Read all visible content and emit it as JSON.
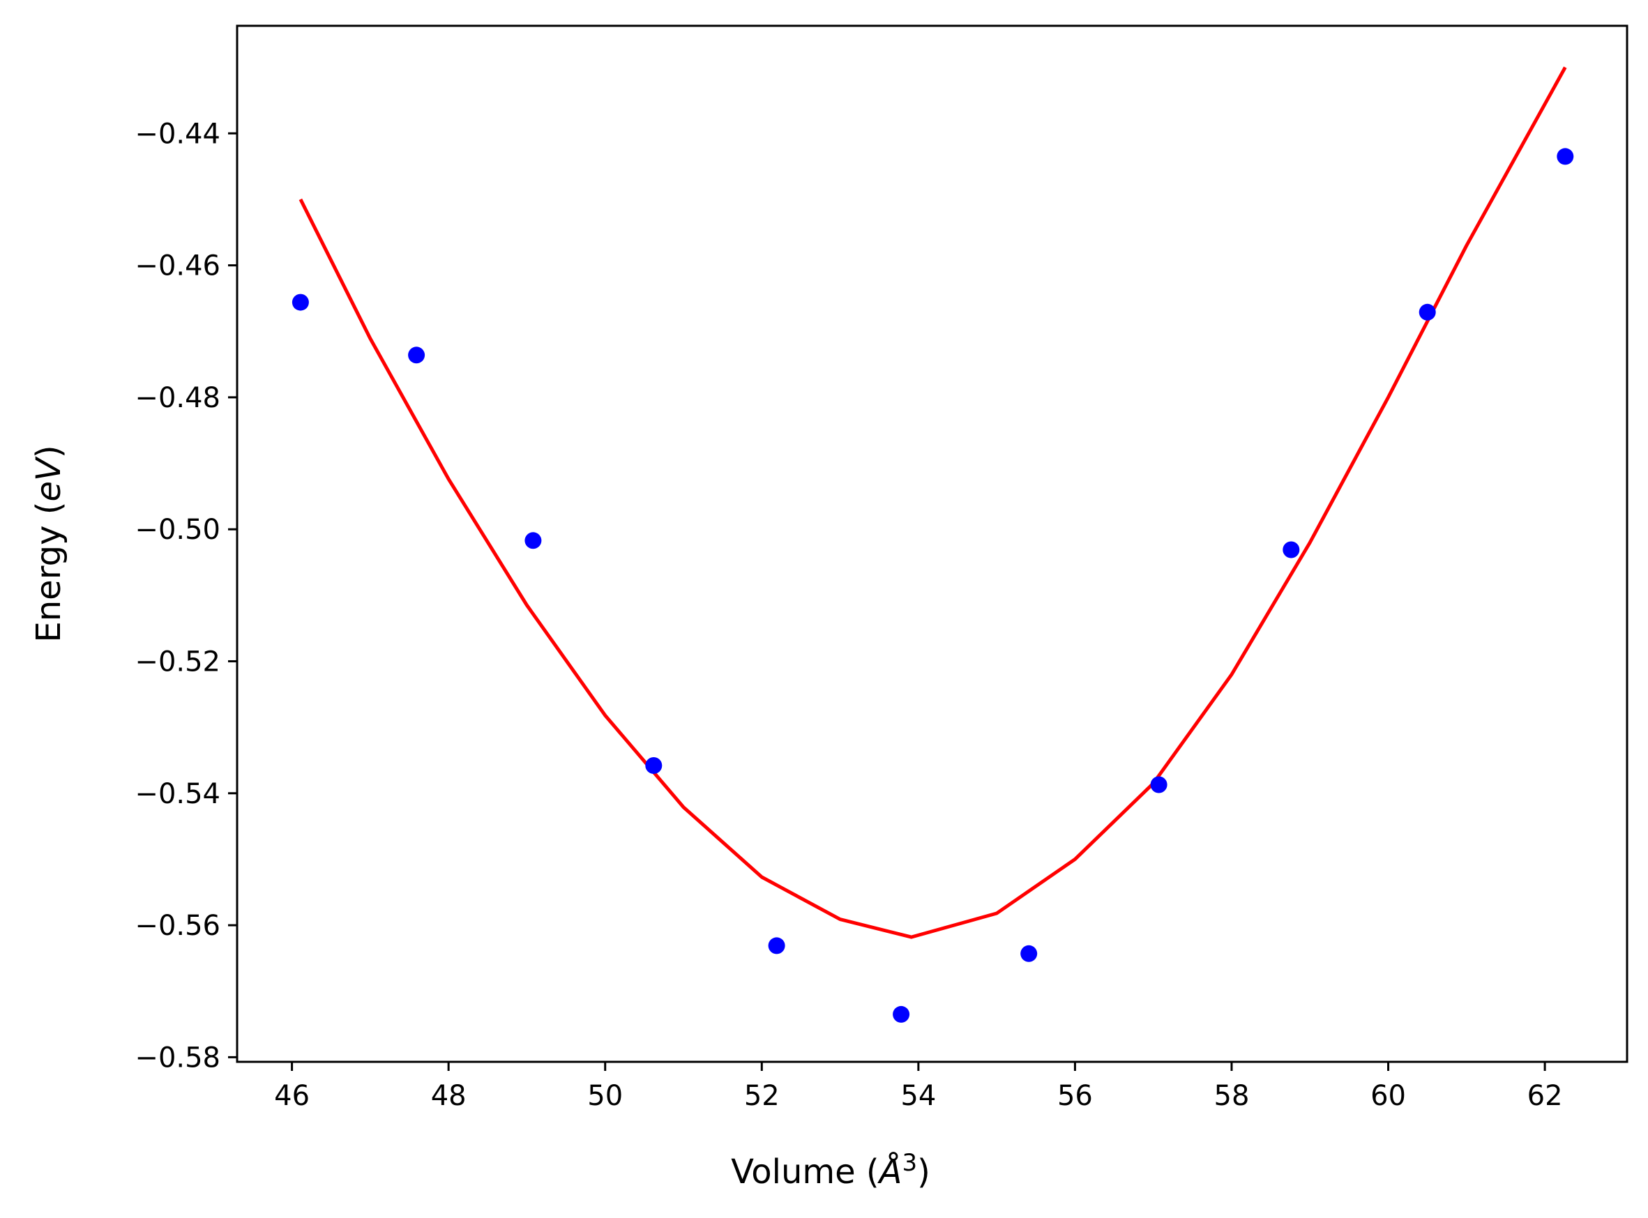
{
  "chart_data": {
    "type": "scatter",
    "title": "",
    "xlabel": "Volume",
    "xlabel_unit": "Å",
    "xlabel_unit_power": "3",
    "ylabel": "Energy",
    "ylabel_unit": "eV",
    "xlim": [
      45.3,
      63.05
    ],
    "ylim": [
      -0.5807,
      -0.4237
    ],
    "xticks": [
      46,
      48,
      50,
      52,
      54,
      56,
      58,
      60,
      62
    ],
    "yticks": [
      -0.44,
      -0.46,
      -0.48,
      -0.5,
      -0.52,
      -0.54,
      -0.56,
      -0.58
    ],
    "xtick_labels": [
      "46",
      "48",
      "50",
      "52",
      "54",
      "56",
      "58",
      "60",
      "62"
    ],
    "ytick_labels": [
      "−0.44",
      "−0.46",
      "−0.48",
      "−0.50",
      "−0.52",
      "−0.54",
      "−0.56",
      "−0.58"
    ],
    "grid": false,
    "legend": "none",
    "series": [
      {
        "kind": "points",
        "color": "#0000ff",
        "x": [
          46.11,
          47.59,
          49.08,
          50.62,
          52.19,
          53.78,
          55.41,
          57.07,
          58.76,
          60.5,
          62.26
        ],
        "y": [
          -0.4656,
          -0.4736,
          -0.5017,
          -0.5358,
          -0.5631,
          -0.5735,
          -0.5643,
          -0.5387,
          -0.5031,
          -0.4671,
          -0.4435
        ]
      },
      {
        "kind": "fit-curve",
        "color": "#ff0000",
        "x": [
          46.11,
          47.0,
          48.0,
          49.0,
          50.0,
          51.0,
          52.0,
          53.0,
          53.91,
          55.0,
          56.0,
          57.0,
          58.0,
          59.0,
          60.0,
          61.0,
          62.26
        ],
        "y": [
          -0.45,
          -0.4711,
          -0.4924,
          -0.5115,
          -0.5282,
          -0.5421,
          -0.5527,
          -0.5591,
          -0.5618,
          -0.5582,
          -0.55,
          -0.5385,
          -0.522,
          -0.502,
          -0.48,
          -0.457,
          -0.43
        ]
      }
    ]
  }
}
